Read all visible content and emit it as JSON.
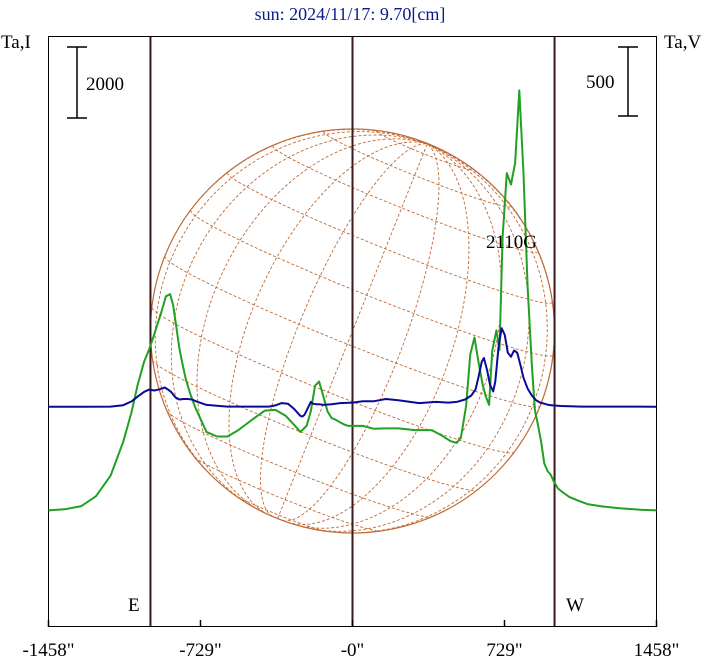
{
  "chart_data": {
    "type": "line",
    "title": "sun: 2024/11/17: 9.70[cm]",
    "left_axis_label": "Ta,I",
    "right_axis_label": "Ta,V",
    "left_scale_bar": "2000",
    "right_scale_bar": "500",
    "annotation": "2110G",
    "east_label": "E",
    "west_label": "W",
    "x_ticks": [
      {
        "value": -1458,
        "label": "-1458\""
      },
      {
        "value": -729,
        "label": "-729\""
      },
      {
        "value": 0,
        "label": "-0\""
      },
      {
        "value": 729,
        "label": "729\""
      },
      {
        "value": 1458,
        "label": "1458\""
      }
    ],
    "xlim": [
      -1458,
      1458
    ],
    "solar_radius_arcsec": 969,
    "colors": {
      "title": "#0b1a8a",
      "stokes_i": "#22a022",
      "stokes_v": "#0a0a96",
      "disk": "#c06a35",
      "limb_lines": "#3a1a1a",
      "frame": "#000000"
    },
    "series": [
      {
        "name": "I",
        "color": "#22a022",
        "axis": "left",
        "x": [
          -1458,
          -1380,
          -1300,
          -1230,
          -1160,
          -1100,
          -1060,
          -1030,
          -1000,
          -975,
          -960,
          -940,
          -915,
          -895,
          -875,
          -860,
          -845,
          -830,
          -815,
          -800,
          -780,
          -755,
          -730,
          -700,
          -650,
          -600,
          -550,
          -480,
          -420,
          -370,
          -320,
          -280,
          -250,
          -220,
          -200,
          -180,
          -160,
          -140,
          -120,
          -100,
          -80,
          -60,
          -40,
          -20,
          0,
          50,
          100,
          150,
          220,
          300,
          380,
          430,
          470,
          500,
          520,
          545,
          565,
          585,
          605,
          625,
          640,
          655,
          670,
          690,
          705,
          720,
          740,
          760,
          780,
          800,
          820,
          840,
          860,
          875,
          890,
          905,
          920,
          935,
          950,
          965,
          985,
          1010,
          1040,
          1080,
          1130,
          1200,
          1280,
          1380,
          1458
        ],
        "values": [
          -2940,
          -2910,
          -2820,
          -2540,
          -1960,
          -1020,
          -180,
          600,
          1240,
          1600,
          1850,
          2220,
          2680,
          3090,
          3150,
          2830,
          2230,
          1620,
          1170,
          770,
          370,
          -30,
          -350,
          -730,
          -860,
          -860,
          -690,
          -380,
          -130,
          -110,
          -280,
          -530,
          -730,
          -560,
          -150,
          570,
          690,
          280,
          -150,
          -340,
          -390,
          -460,
          -520,
          -560,
          -560,
          -560,
          -640,
          -630,
          -630,
          -680,
          -680,
          -840,
          -990,
          -1040,
          -900,
          0,
          1460,
          1930,
          1220,
          580,
          260,
          30,
          1550,
          2130,
          1580,
          4760,
          6560,
          6240,
          6840,
          8890,
          6550,
          3370,
          1180,
          -120,
          -550,
          -1020,
          -1620,
          -1830,
          -1930,
          -2120,
          -2320,
          -2440,
          -2560,
          -2660,
          -2770,
          -2830,
          -2880,
          -2920,
          -2940
        ]
      },
      {
        "name": "V",
        "color": "#0a0a96",
        "axis": "right",
        "x": [
          -1458,
          -1300,
          -1160,
          -1100,
          -1060,
          -1030,
          -1000,
          -975,
          -950,
          -925,
          -900,
          -885,
          -870,
          -850,
          -830,
          -810,
          -790,
          -770,
          -750,
          -700,
          -600,
          -480,
          -400,
          -370,
          -340,
          -310,
          -280,
          -260,
          -250,
          -240,
          -230,
          -215,
          -200,
          -190,
          -175,
          -160,
          -140,
          -100,
          -60,
          0,
          50,
          100,
          160,
          220,
          320,
          400,
          460,
          500,
          540,
          570,
          590,
          605,
          620,
          630,
          645,
          660,
          675,
          685,
          700,
          715,
          730,
          745,
          760,
          775,
          790,
          805,
          820,
          840,
          860,
          880,
          900,
          920,
          940,
          960,
          1000,
          1100,
          1200,
          1300,
          1458
        ],
        "values": [
          -6,
          -6,
          -4,
          6,
          33,
          68,
          102,
          119,
          112,
          121,
          134,
          119,
          102,
          64,
          47,
          51,
          51,
          47,
          34,
          8,
          -4,
          -4,
          -4,
          4,
          21,
          17,
          -21,
          -55,
          -72,
          -76,
          -64,
          -17,
          30,
          17,
          13,
          13,
          8,
          13,
          21,
          25,
          34,
          34,
          51,
          42,
          21,
          30,
          25,
          30,
          47,
          76,
          119,
          212,
          322,
          348,
          263,
          152,
          106,
          178,
          424,
          564,
          517,
          386,
          357,
          403,
          386,
          301,
          204,
          127,
          76,
          42,
          25,
          17,
          8,
          4,
          0,
          -4,
          -4,
          -4,
          -6
        ]
      }
    ]
  }
}
